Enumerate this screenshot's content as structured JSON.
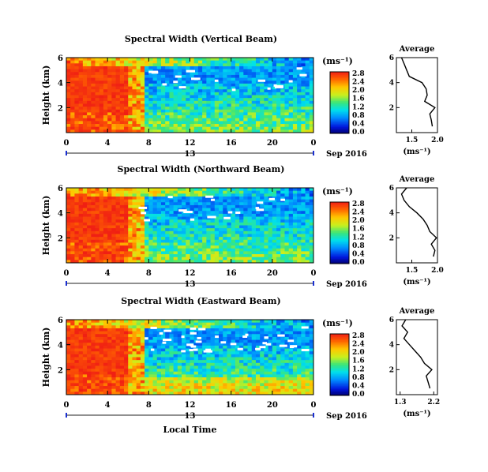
{
  "chart_data": [
    {
      "type": "heatmap",
      "title": "Spectral Width (Vertical Beam)",
      "ylabel": "Height (km)",
      "xlabel": "",
      "x_ticks": [
        "0",
        "4",
        "8",
        "12",
        "16",
        "20",
        "0"
      ],
      "y_ticks": [
        "6",
        "4",
        "2"
      ],
      "date_label": "13",
      "date_suffix": "Sep 2016",
      "xlim": [
        0,
        24
      ],
      "ylim": [
        0,
        6
      ],
      "colorbar": {
        "unit": "(ms⁻¹)",
        "ticks": [
          "2.8",
          "2.4",
          "2.0",
          "1.6",
          "1.2",
          "0.8",
          "0.4",
          "0.0"
        ],
        "range": [
          0,
          2.8
        ]
      },
      "average_profile": {
        "title": "Average",
        "x_ticks": [
          "1.5",
          "2.0"
        ],
        "y_ticks": [
          "6",
          "4",
          "2"
        ],
        "xlabel": "(ms⁻¹)",
        "xlim": [
          1.2,
          2.0
        ],
        "ylim": [
          0,
          6
        ],
        "heights": [
          0.5,
          1.0,
          1.5,
          2.0,
          2.5,
          3.0,
          3.5,
          4.0,
          4.5,
          5.0,
          5.5,
          6.0
        ],
        "values": [
          1.9,
          1.88,
          1.85,
          1.95,
          1.75,
          1.8,
          1.78,
          1.7,
          1.45,
          1.4,
          1.35,
          1.3
        ]
      }
    },
    {
      "type": "heatmap",
      "title": "Spectral Width (Northward Beam)",
      "ylabel": "Height (km)",
      "xlabel": "",
      "x_ticks": [
        "0",
        "4",
        "8",
        "12",
        "16",
        "20",
        "0"
      ],
      "y_ticks": [
        "6",
        "4",
        "2"
      ],
      "date_label": "13",
      "date_suffix": "Sep 2016",
      "xlim": [
        0,
        24
      ],
      "ylim": [
        0,
        6
      ],
      "colorbar": {
        "unit": "(ms⁻¹)",
        "ticks": [
          "2.8",
          "2.4",
          "2.0",
          "1.6",
          "1.2",
          "0.8",
          "0.4",
          "0.0"
        ],
        "range": [
          0,
          2.8
        ]
      },
      "average_profile": {
        "title": "Average",
        "x_ticks": [
          "1.5",
          "2.0"
        ],
        "y_ticks": [
          "6",
          "4",
          "2"
        ],
        "xlabel": "(ms⁻¹)",
        "xlim": [
          1.2,
          2.0
        ],
        "ylim": [
          0,
          6
        ],
        "heights": [
          0.5,
          1.0,
          1.5,
          2.0,
          2.5,
          3.0,
          3.5,
          4.0,
          4.5,
          5.0,
          5.5,
          6.0
        ],
        "values": [
          1.92,
          1.95,
          1.88,
          1.98,
          1.85,
          1.8,
          1.72,
          1.6,
          1.45,
          1.35,
          1.3,
          1.4
        ]
      }
    },
    {
      "type": "heatmap",
      "title": "Spectral Width (Eastward Beam)",
      "ylabel": "Height (km)",
      "xlabel": "Local Time",
      "x_ticks": [
        "0",
        "4",
        "8",
        "12",
        "16",
        "20",
        "0"
      ],
      "y_ticks": [
        "6",
        "4",
        "2"
      ],
      "date_label": "13",
      "date_suffix": "Sep 2016",
      "xlim": [
        0,
        24
      ],
      "ylim": [
        0,
        6
      ],
      "colorbar": {
        "unit": "(ms⁻¹)",
        "ticks": [
          "2.8",
          "2.4",
          "2.0",
          "1.6",
          "1.2",
          "0.8",
          "0.4",
          "0.0"
        ],
        "range": [
          0,
          2.8
        ]
      },
      "average_profile": {
        "title": "Average",
        "x_ticks": [
          "1.3",
          "2.2"
        ],
        "y_ticks": [
          "6",
          "4",
          "2"
        ],
        "xlabel": "(ms⁻¹)",
        "xlim": [
          1.2,
          2.3
        ],
        "ylim": [
          0,
          6
        ],
        "heights": [
          0.5,
          1.0,
          1.5,
          2.0,
          2.5,
          3.0,
          3.5,
          4.0,
          4.5,
          5.0,
          5.5,
          6.0
        ],
        "values": [
          2.1,
          2.05,
          2.0,
          2.15,
          1.95,
          1.85,
          1.7,
          1.55,
          1.4,
          1.5,
          1.35,
          1.45
        ]
      }
    }
  ]
}
